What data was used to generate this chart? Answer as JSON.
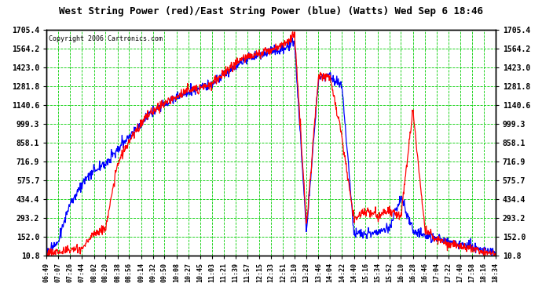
{
  "title": "West String Power (red)/East String Power (blue) (Watts) Wed Sep 6 18:46",
  "copyright": "Copyright 2006 Cartronics.com",
  "background_color": "#ffffff",
  "plot_bg_color": "#ffffff",
  "grid_color": "#00cc00",
  "yticks": [
    10.8,
    152.0,
    293.2,
    434.4,
    575.7,
    716.9,
    858.1,
    999.3,
    1140.6,
    1281.8,
    1423.0,
    1564.2,
    1705.4
  ],
  "ymin": 10.8,
  "ymax": 1705.4,
  "red_color": "#ff0000",
  "blue_color": "#0000ff",
  "xtick_labels": [
    "06:49",
    "07:07",
    "07:26",
    "07:44",
    "08:02",
    "08:20",
    "08:38",
    "08:56",
    "09:14",
    "09:32",
    "09:50",
    "10:08",
    "10:27",
    "10:45",
    "11:03",
    "11:21",
    "11:39",
    "11:57",
    "12:15",
    "12:33",
    "12:51",
    "13:10",
    "13:28",
    "13:46",
    "14:04",
    "14:22",
    "14:40",
    "15:16",
    "15:34",
    "15:52",
    "16:10",
    "16:28",
    "16:46",
    "17:04",
    "17:22",
    "17:40",
    "17:58",
    "18:16",
    "18:34"
  ]
}
